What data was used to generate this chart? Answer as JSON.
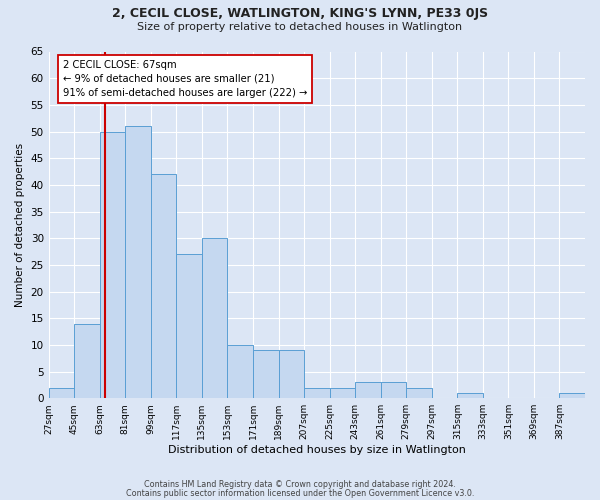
{
  "title_line1": "2, CECIL CLOSE, WATLINGTON, KING'S LYNN, PE33 0JS",
  "title_line2": "Size of property relative to detached houses in Watlington",
  "xlabel": "Distribution of detached houses by size in Watlington",
  "ylabel": "Number of detached properties",
  "bar_color": "#c5d8f0",
  "bar_edge_color": "#5a9fd4",
  "vline_color": "#cc0000",
  "vline_x": 67,
  "annotation_title": "2 CECIL CLOSE: 67sqm",
  "annotation_line1": "← 9% of detached houses are smaller (21)",
  "annotation_line2": "91% of semi-detached houses are larger (222) →",
  "annotation_box_color": "#ffffff",
  "annotation_box_edge": "#cc0000",
  "bin_labels": [
    "27sqm",
    "45sqm",
    "63sqm",
    "81sqm",
    "99sqm",
    "117sqm",
    "135sqm",
    "153sqm",
    "171sqm",
    "189sqm",
    "207sqm",
    "225sqm",
    "243sqm",
    "261sqm",
    "279sqm",
    "297sqm",
    "315sqm",
    "333sqm",
    "351sqm",
    "369sqm",
    "387sqm"
  ],
  "bin_edges": [
    27,
    45,
    63,
    81,
    99,
    117,
    135,
    153,
    171,
    189,
    207,
    225,
    243,
    261,
    279,
    297,
    315,
    333,
    351,
    369,
    387
  ],
  "bin_values": [
    2,
    14,
    50,
    51,
    42,
    27,
    30,
    10,
    9,
    9,
    2,
    2,
    3,
    3,
    2,
    0,
    1,
    0,
    0,
    0,
    1
  ],
  "ylim": [
    0,
    65
  ],
  "yticks": [
    0,
    5,
    10,
    15,
    20,
    25,
    30,
    35,
    40,
    45,
    50,
    55,
    60,
    65
  ],
  "background_color": "#dce6f5",
  "grid_color": "#ffffff",
  "footnote1": "Contains HM Land Registry data © Crown copyright and database right 2024.",
  "footnote2": "Contains public sector information licensed under the Open Government Licence v3.0."
}
